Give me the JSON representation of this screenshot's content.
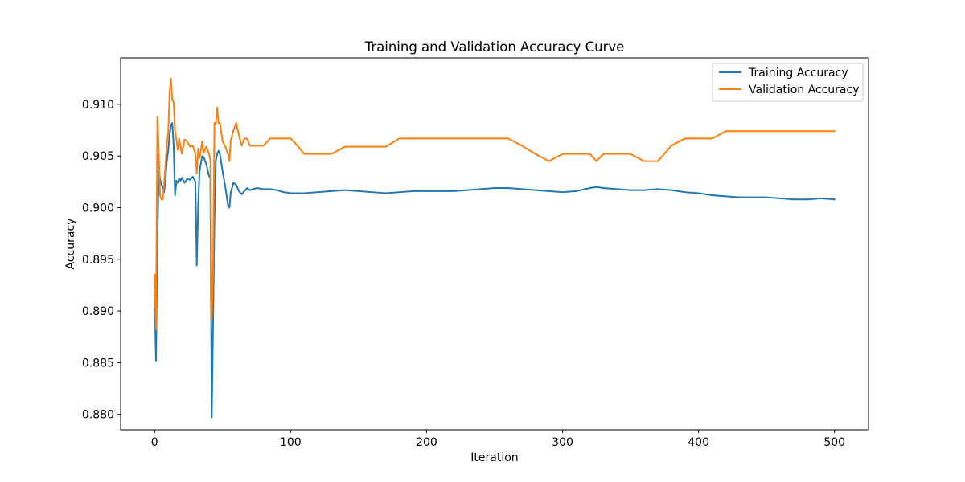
{
  "chart_data": {
    "type": "line",
    "title": "Training and Validation Accuracy Curve",
    "xlabel": "Iteration",
    "ylabel": "Accuracy",
    "xlim": [
      -25,
      525
    ],
    "ylim": [
      0.8785,
      0.9145
    ],
    "xticks": [
      0,
      100,
      200,
      300,
      400,
      500
    ],
    "xtick_labels": [
      "0",
      "100",
      "200",
      "300",
      "400",
      "500"
    ],
    "yticks": [
      0.88,
      0.885,
      0.89,
      0.895,
      0.9,
      0.905,
      0.91
    ],
    "ytick_labels": [
      "0.880",
      "0.885",
      "0.890",
      "0.895",
      "0.900",
      "0.905",
      "0.910"
    ],
    "grid": false,
    "legend_position": "top-right",
    "series": [
      {
        "name": "Training Accuracy",
        "color": "#1f77b4",
        "x": [
          0,
          1,
          2,
          3,
          4,
          5,
          6,
          7,
          8,
          9,
          10,
          11,
          12,
          13,
          14,
          15,
          16,
          17,
          18,
          19,
          20,
          22,
          24,
          26,
          28,
          30,
          31,
          32,
          33,
          35,
          36,
          38,
          40,
          41,
          42,
          43,
          44,
          45,
          46,
          47,
          48,
          50,
          52,
          54,
          55,
          56,
          58,
          60,
          62,
          64,
          66,
          68,
          70,
          75,
          80,
          85,
          90,
          95,
          100,
          105,
          110,
          120,
          130,
          140,
          150,
          160,
          170,
          180,
          190,
          200,
          210,
          220,
          230,
          240,
          250,
          260,
          270,
          280,
          290,
          300,
          310,
          320,
          325,
          330,
          340,
          350,
          360,
          370,
          380,
          390,
          400,
          410,
          420,
          430,
          440,
          450,
          460,
          470,
          480,
          490,
          500
        ],
        "y": [
          0.8915,
          0.8852,
          0.8965,
          0.9035,
          0.9028,
          0.9022,
          0.902,
          0.9015,
          0.9028,
          0.9045,
          0.9055,
          0.907,
          0.908,
          0.9082,
          0.906,
          0.9012,
          0.9026,
          0.9024,
          0.9028,
          0.9026,
          0.9029,
          0.9024,
          0.9028,
          0.9027,
          0.903,
          0.9025,
          0.8944,
          0.9,
          0.9035,
          0.905,
          0.9049,
          0.9042,
          0.9031,
          0.9028,
          0.8797,
          0.889,
          0.899,
          0.9045,
          0.9052,
          0.9055,
          0.9052,
          0.9035,
          0.902,
          0.9002,
          0.9,
          0.9015,
          0.9024,
          0.9022,
          0.9016,
          0.9013,
          0.9016,
          0.9019,
          0.9017,
          0.9019,
          0.9018,
          0.9018,
          0.9017,
          0.9015,
          0.9014,
          0.9014,
          0.9014,
          0.9015,
          0.9016,
          0.9017,
          0.9016,
          0.9015,
          0.9014,
          0.9015,
          0.9016,
          0.9016,
          0.9016,
          0.9016,
          0.9017,
          0.9018,
          0.9019,
          0.9019,
          0.9018,
          0.9017,
          0.9016,
          0.9015,
          0.9016,
          0.9019,
          0.902,
          0.9019,
          0.9018,
          0.9017,
          0.9017,
          0.9018,
          0.9017,
          0.9015,
          0.9014,
          0.9012,
          0.9011,
          0.901,
          0.901,
          0.901,
          0.9009,
          0.9008,
          0.9008,
          0.9009,
          0.9008
        ]
      },
      {
        "name": "Validation Accuracy",
        "color": "#ff7f0e",
        "x": [
          0,
          1,
          2,
          3,
          4,
          5,
          6,
          7,
          8,
          9,
          10,
          11,
          12,
          13,
          14,
          15,
          16,
          17,
          18,
          19,
          20,
          22,
          24,
          26,
          28,
          30,
          31,
          32,
          33,
          35,
          36,
          38,
          40,
          41,
          42,
          43,
          44,
          45,
          46,
          47,
          48,
          50,
          52,
          54,
          55,
          56,
          58,
          60,
          62,
          64,
          66,
          68,
          70,
          75,
          80,
          85,
          90,
          95,
          100,
          105,
          110,
          120,
          130,
          140,
          150,
          160,
          170,
          180,
          190,
          200,
          210,
          220,
          230,
          240,
          250,
          260,
          270,
          280,
          290,
          300,
          310,
          320,
          325,
          330,
          340,
          350,
          360,
          370,
          380,
          390,
          400,
          410,
          420,
          430,
          440,
          450,
          460,
          470,
          480,
          490,
          500
        ],
        "y": [
          0.8935,
          0.8882,
          0.9088,
          0.9056,
          0.9012,
          0.9008,
          0.9008,
          0.9024,
          0.9042,
          0.9062,
          0.9072,
          0.9112,
          0.9125,
          0.9104,
          0.9102,
          0.9074,
          0.9066,
          0.9056,
          0.9067,
          0.9059,
          0.9052,
          0.9066,
          0.9064,
          0.9059,
          0.906,
          0.9052,
          0.9033,
          0.9057,
          0.9048,
          0.9064,
          0.9053,
          0.9059,
          0.9052,
          0.9046,
          0.8891,
          0.894,
          0.9082,
          0.9081,
          0.9097,
          0.9082,
          0.9082,
          0.9064,
          0.9059,
          0.9052,
          0.9045,
          0.9065,
          0.9075,
          0.9082,
          0.907,
          0.906,
          0.9067,
          0.9067,
          0.906,
          0.906,
          0.906,
          0.9067,
          0.9067,
          0.9067,
          0.9067,
          0.906,
          0.9052,
          0.9052,
          0.9052,
          0.9059,
          0.9059,
          0.9059,
          0.9059,
          0.9067,
          0.9067,
          0.9067,
          0.9067,
          0.9067,
          0.9067,
          0.9067,
          0.9067,
          0.9067,
          0.906,
          0.9052,
          0.9045,
          0.9052,
          0.9052,
          0.9052,
          0.9045,
          0.9052,
          0.9052,
          0.9052,
          0.9045,
          0.9045,
          0.906,
          0.9067,
          0.9067,
          0.9067,
          0.9074,
          0.9074,
          0.9074,
          0.9074,
          0.9074,
          0.9074,
          0.9074,
          0.9074,
          0.9074
        ]
      }
    ]
  }
}
